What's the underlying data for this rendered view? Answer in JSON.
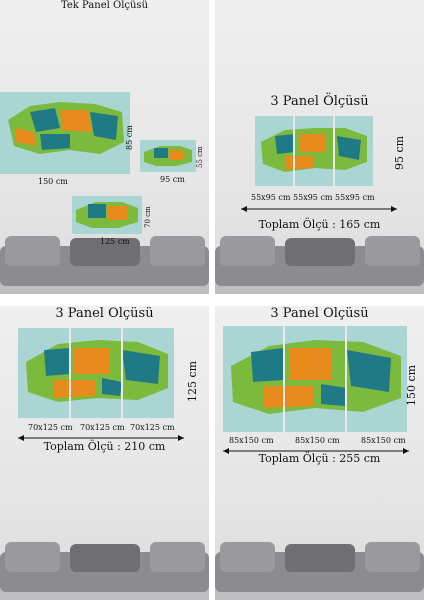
{
  "q1": {
    "title": "Tek Panel Ölçüsü",
    "large": {
      "width_label": "150 cm",
      "height_label": "85 cm"
    },
    "medium": {
      "width_label": "125 cm",
      "height_label": "70 cm"
    },
    "small": {
      "width_label": "95 cm",
      "height_label": "55 cm"
    }
  },
  "q2": {
    "title": "3 Panel Ölçüsü",
    "height_label": "95 cm",
    "panel_label": "55x95 cm 55x95 cm 55x95 cm",
    "total": "Toplam Ölçü : 165 cm"
  },
  "q3": {
    "title": "3 Panel Ölçüsü",
    "height_label": "125 cm",
    "panel_labels": [
      "70x125 cm",
      "70x125 cm",
      "70x125 cm"
    ],
    "total": "Toplam Ölçü : 210 cm"
  },
  "q4": {
    "title": "3 Panel Ölçüsü",
    "height_label": "150 cm",
    "panel_labels": [
      "85x150 cm",
      "85x150 cm",
      "85x150 cm"
    ],
    "total": "Toplam Ölçü : 255 cm"
  },
  "colors": {
    "teal": "#1f7a86",
    "orange": "#e88a1c",
    "green": "#7cba3d",
    "sea": "#a9d6d2"
  }
}
